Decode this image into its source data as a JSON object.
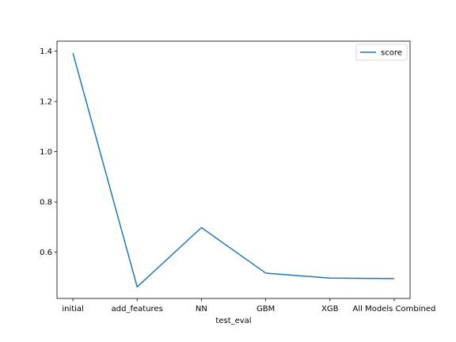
{
  "chart_data": {
    "type": "line",
    "title": "",
    "xlabel": "test_eval",
    "ylabel": "",
    "categories": [
      "initial",
      "add_features",
      "NN",
      "GBM",
      "XGB",
      "All Models Combined"
    ],
    "series": [
      {
        "name": "score",
        "values": [
          1.393,
          0.462,
          0.698,
          0.517,
          0.497,
          0.495
        ],
        "color": "#1f77b4"
      }
    ],
    "ylim": [
      0.416,
      1.44
    ],
    "yticks": [
      0.6,
      0.8,
      1.0,
      1.2,
      1.4
    ],
    "ytick_labels": [
      "0.6",
      "0.8",
      "1.0",
      "1.2",
      "1.4"
    ],
    "grid": false,
    "legend": {
      "position": "top-right",
      "entries": [
        "score"
      ]
    }
  }
}
